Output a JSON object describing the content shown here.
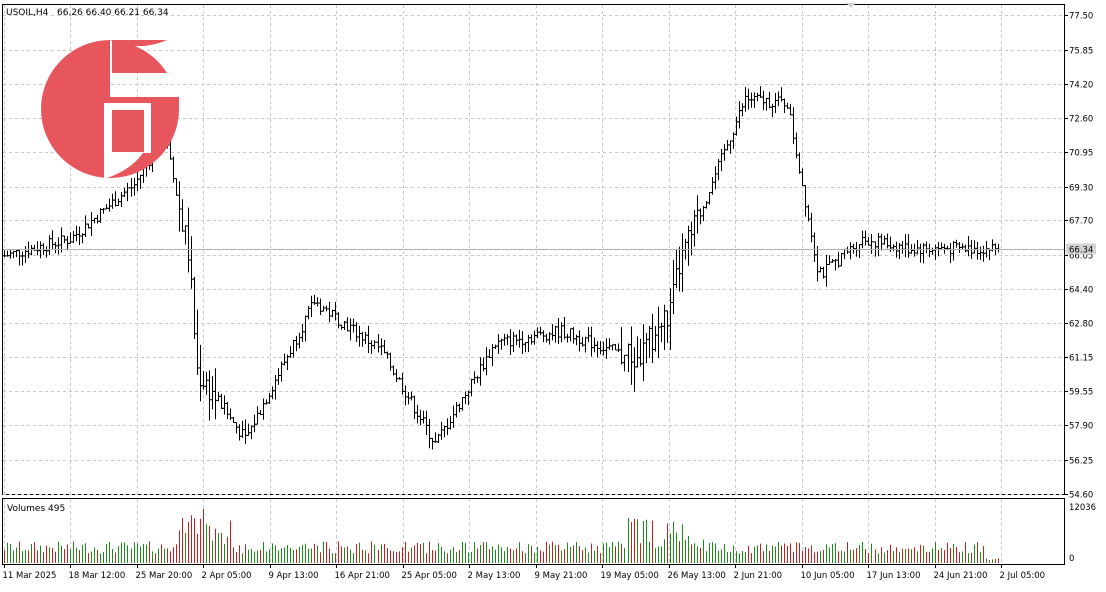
{
  "header": {
    "symbol": "USOIL,H4",
    "ohlc": "66.26 66.40 66.21 66.34"
  },
  "volume_panel": {
    "label": "Volumes 495",
    "max_label": "12036",
    "zero_label": "0"
  },
  "current_price_label": "66.34",
  "colors": {
    "background": "#ffffff",
    "grid": "#c8c8c8",
    "bars": "#000000",
    "volume_up": "#1a8c1a",
    "volume_down": "#c81e1e",
    "logo": "#e8565d",
    "price_label_bg": "#d3d3d3"
  },
  "logo_icon": "f-logo-icon",
  "chart_data": [
    {
      "type": "ohlc",
      "title": "USOIL,H4",
      "x_tick_labels": [
        "11 Mar 2025",
        "18 Mar 12:00",
        "25 Mar 20:00",
        "2 Apr 05:00",
        "9 Apr 13:00",
        "16 Apr 21:00",
        "25 Apr 05:00",
        "2 May 13:00",
        "9 May 21:00",
        "19 May 05:00",
        "26 May 13:00",
        "2 Jun 21:00",
        "10 Jun 05:00",
        "17 Jun 13:00",
        "24 Jun 21:00",
        "2 Jul 05:00"
      ],
      "y_tick_labels": [
        "77.50",
        "75.85",
        "74.20",
        "72.60",
        "70.95",
        "69.30",
        "67.70",
        "66.05",
        "64.40",
        "62.80",
        "61.15",
        "59.55",
        "57.90",
        "56.25",
        "54.60"
      ],
      "ylim": [
        54.6,
        78.0
      ],
      "grid": true,
      "last_price": 66.34,
      "key_points": [
        {
          "x": "11 Mar 2025",
          "y": 66.0
        },
        {
          "x": "18 Mar 12:00",
          "y": 66.8
        },
        {
          "x": "25 Mar 20:00",
          "y": 69.4
        },
        {
          "x": "29 Mar",
          "y": 71.8
        },
        {
          "x": "2 Apr 05:00",
          "y": 66.2
        },
        {
          "x": "4 Apr",
          "y": 60.5
        },
        {
          "x": "9 Apr 13:00",
          "y": 57.2
        },
        {
          "x": "16 Apr 21:00",
          "y": 63.8
        },
        {
          "x": "25 Apr 05:00",
          "y": 61.5
        },
        {
          "x": "2 May 13:00",
          "y": 57.0
        },
        {
          "x": "9 May 21:00",
          "y": 61.8
        },
        {
          "x": "19 May 05:00",
          "y": 62.4
        },
        {
          "x": "26 May 13:00",
          "y": 61.0
        },
        {
          "x": "2 Jun 21:00",
          "y": 63.3
        },
        {
          "x": "8 Jun",
          "y": 65.5
        },
        {
          "x": "13 Jun",
          "y": 73.5
        },
        {
          "x": "17 Jun 13:00",
          "y": 73.3
        },
        {
          "x": "23 Jun",
          "y": 65.5
        },
        {
          "x": "24 Jun 21:00",
          "y": 65.2
        },
        {
          "x": "2 Jul 05:00",
          "y": 66.8
        },
        {
          "x": "3 Jul",
          "y": 66.34
        }
      ]
    },
    {
      "type": "bar",
      "title": "Volumes 495",
      "ylim": [
        0,
        12036
      ],
      "y_tick_labels": [
        "12036",
        "0"
      ]
    }
  ]
}
